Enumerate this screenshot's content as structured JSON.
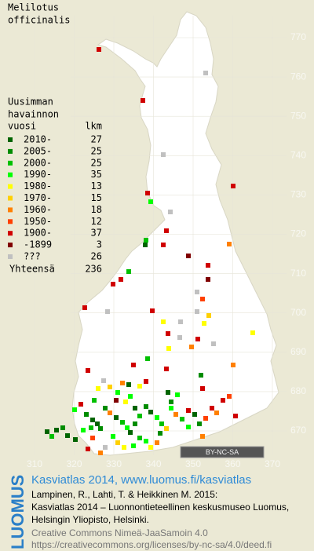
{
  "title": [
    "Melilotus",
    "officinalis"
  ],
  "legend": {
    "heading": [
      "Uusimman",
      "havainnon"
    ],
    "col_year": "vuosi",
    "col_count": "lkm",
    "entries": [
      {
        "label": "2010-",
        "count": 27,
        "color": "#006400"
      },
      {
        "label": "2005-",
        "count": 25,
        "color": "#008c00"
      },
      {
        "label": "2000-",
        "count": 25,
        "color": "#00c000"
      },
      {
        "label": "1990-",
        "count": 35,
        "color": "#00ff00"
      },
      {
        "label": "1980-",
        "count": 13,
        "color": "#ffff00"
      },
      {
        "label": "1970-",
        "count": 15,
        "color": "#ffd000"
      },
      {
        "label": "1960-",
        "count": 18,
        "color": "#ff8000"
      },
      {
        "label": "1950-",
        "count": 12,
        "color": "#ff4000"
      },
      {
        "label": "1900-",
        "count": 37,
        "color": "#d00000"
      },
      {
        "label": "-1899",
        "count": 3,
        "color": "#800000"
      },
      {
        "label": "???",
        "count": 26,
        "color": "#c0c0c0"
      }
    ],
    "total_label": "Yhteensä",
    "total": 236
  },
  "grid": {
    "y_labels": [
      770,
      760,
      750,
      740,
      730,
      720,
      710,
      700,
      690,
      680,
      670
    ],
    "x_labels": [
      310,
      320,
      330,
      340,
      350,
      360,
      370
    ]
  },
  "license_badge": "BY-NC-SA",
  "footer": {
    "logo": "LUOMUS",
    "heading": "Kasviatlas 2014, www.luomus.fi/kasviatlas",
    "citation": [
      "Lampinen, R., Lahti, T. & Heikkinen M. 2015:",
      "Kasviatlas 2014 – Luonnontieteellinen keskusmuseo Luomus,",
      "Helsingin Yliopisto, Helsinki."
    ],
    "license": [
      "Creative Commons Nimeä-JaaSamoin 4.0",
      "https://creativecommons.org/licenses/by-nc-sa/4.0/deed.fi"
    ]
  }
}
